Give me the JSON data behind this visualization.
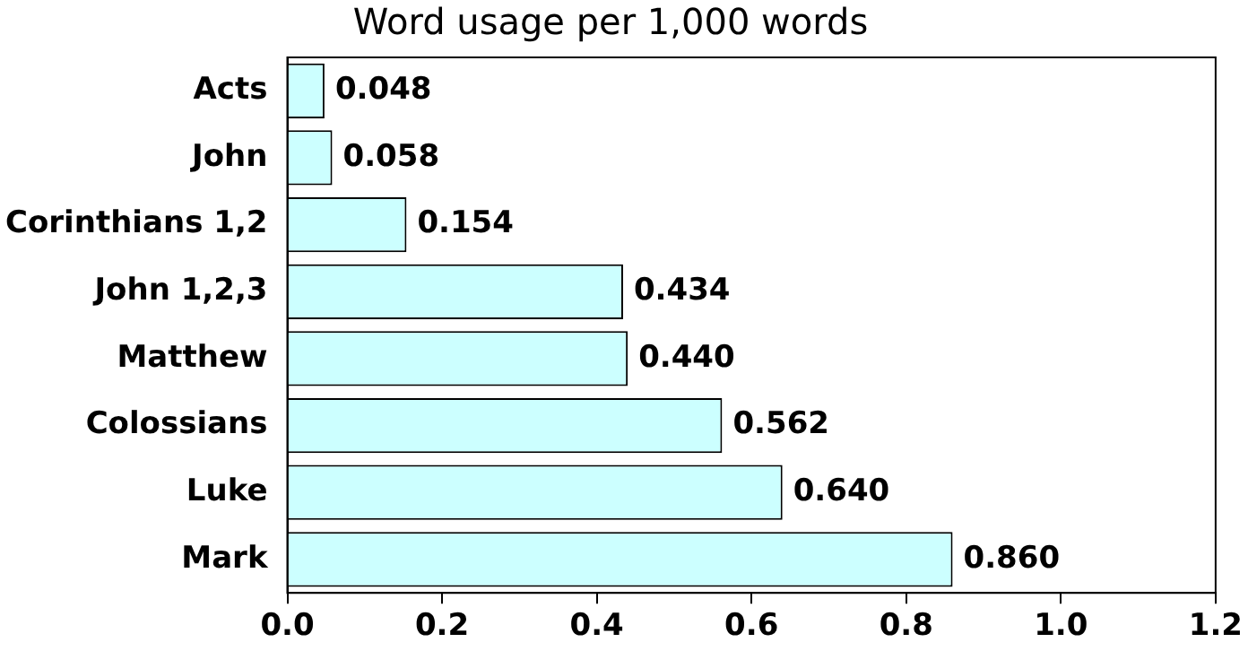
{
  "chart_data": {
    "type": "bar",
    "orientation": "horizontal",
    "title": "Word usage per 1,000 words",
    "categories": [
      "Acts",
      "John",
      "Corinthians 1,2",
      "John 1,2,3",
      "Matthew",
      "Colossians",
      "Luke",
      "Mark"
    ],
    "values": [
      0.048,
      0.058,
      0.154,
      0.434,
      0.44,
      0.562,
      0.64,
      0.86
    ],
    "value_labels": [
      "0.048",
      "0.058",
      "0.154",
      "0.434",
      "0.440",
      "0.562",
      "0.640",
      "0.860"
    ],
    "color": "#ccffff",
    "xlim": [
      0,
      1.2
    ],
    "xticks": [
      {
        "value": 0,
        "label": "0.0"
      },
      {
        "value": 0.2,
        "label": "0.2"
      },
      {
        "value": 0.4,
        "label": "0.4"
      },
      {
        "value": 0.6,
        "label": "0.6"
      },
      {
        "value": 0.8,
        "label": "0.8"
      },
      {
        "value": 1,
        "label": "1.0"
      },
      {
        "value": 1.2,
        "label": "1.2"
      }
    ],
    "grid": false,
    "legend": false
  }
}
